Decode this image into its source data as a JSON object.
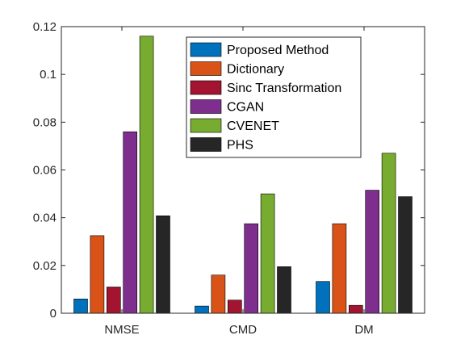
{
  "chart_data": {
    "type": "bar",
    "title": "",
    "xlabel": "",
    "ylabel": "",
    "categories": [
      "NMSE",
      "CMD",
      "DM"
    ],
    "ylim": [
      0,
      0.12
    ],
    "yticks": [
      0,
      0.02,
      0.04,
      0.06,
      0.08,
      0.1,
      0.12
    ],
    "ytick_labels": [
      "0",
      "0.02",
      "0.04",
      "0.06",
      "0.08",
      "0.1",
      "0.12"
    ],
    "grid": false,
    "legend_position": "top-right",
    "series": [
      {
        "name": "Proposed Method",
        "color": "#0072BD",
        "values": [
          0.006,
          0.003,
          0.0133
        ]
      },
      {
        "name": "Dictionary",
        "color": "#D95319",
        "values": [
          0.0325,
          0.016,
          0.0375
        ]
      },
      {
        "name": "Sinc Transformation",
        "color": "#A2142F",
        "values": [
          0.011,
          0.0055,
          0.0033
        ]
      },
      {
        "name": "CGAN",
        "color": "#7E2F8E",
        "values": [
          0.076,
          0.0375,
          0.0515
        ]
      },
      {
        "name": "CVENET",
        "color": "#77AC30",
        "values": [
          0.116,
          0.05,
          0.067
        ]
      },
      {
        "name": "PHS",
        "color": "#262626",
        "values": [
          0.0408,
          0.0195,
          0.0488
        ]
      }
    ]
  }
}
